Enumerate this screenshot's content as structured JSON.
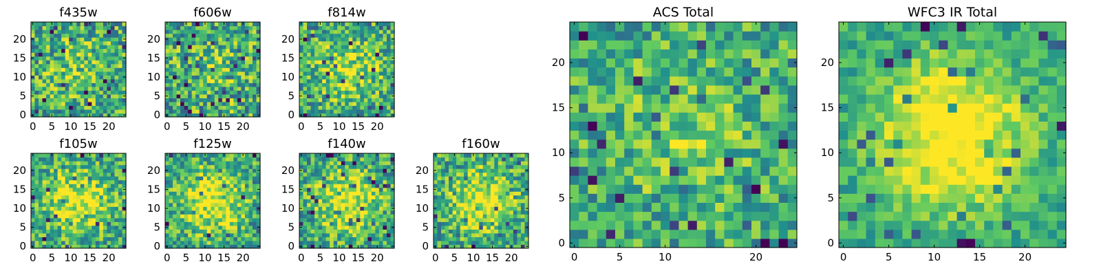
{
  "figure": {
    "colormap": "viridis",
    "cmap_stops": [
      "#440154",
      "#3b528b",
      "#21918c",
      "#5ec962",
      "#fde725"
    ],
    "grid": false
  },
  "chart_data": [
    {
      "type": "heatmap",
      "title": "f435w",
      "size": 25,
      "xlim": [
        0,
        24
      ],
      "ylim": [
        0,
        24
      ],
      "xticks": [
        0,
        5,
        10,
        15,
        20
      ],
      "yticks": [
        0,
        5,
        10,
        15,
        20
      ],
      "contrast": 0.32,
      "blob": 0.15,
      "seed": 11
    },
    {
      "type": "heatmap",
      "title": "f606w",
      "size": 25,
      "xlim": [
        0,
        24
      ],
      "ylim": [
        0,
        24
      ],
      "xticks": [
        0,
        5,
        10,
        15,
        20
      ],
      "yticks": [
        0,
        5,
        10,
        15,
        20
      ],
      "contrast": 0.34,
      "blob": 0.1,
      "seed": 23
    },
    {
      "type": "heatmap",
      "title": "f814w",
      "size": 25,
      "xlim": [
        0,
        24
      ],
      "ylim": [
        0,
        24
      ],
      "xticks": [
        0,
        5,
        10,
        15,
        20
      ],
      "yticks": [
        0,
        5,
        10,
        15,
        20
      ],
      "contrast": 0.3,
      "blob": 0.3,
      "seed": 37
    },
    {
      "type": "heatmap",
      "title": "f105w",
      "size": 25,
      "xlim": [
        0,
        24
      ],
      "ylim": [
        0,
        24
      ],
      "xticks": [
        0,
        5,
        10,
        15,
        20
      ],
      "yticks": [
        0,
        5,
        10,
        15,
        20
      ],
      "contrast": 0.28,
      "blob": 0.4,
      "seed": 41
    },
    {
      "type": "heatmap",
      "title": "f125w",
      "size": 25,
      "xlim": [
        0,
        24
      ],
      "ylim": [
        0,
        24
      ],
      "xticks": [
        0,
        5,
        10,
        15,
        20
      ],
      "yticks": [
        0,
        5,
        10,
        15,
        20
      ],
      "contrast": 0.28,
      "blob": 0.45,
      "seed": 53
    },
    {
      "type": "heatmap",
      "title": "f140w",
      "size": 25,
      "xlim": [
        0,
        24
      ],
      "ylim": [
        0,
        24
      ],
      "xticks": [
        0,
        5,
        10,
        15,
        20
      ],
      "yticks": [
        0,
        5,
        10,
        15,
        20
      ],
      "contrast": 0.28,
      "blob": 0.42,
      "seed": 67
    },
    {
      "type": "heatmap",
      "title": "f160w",
      "size": 25,
      "xlim": [
        0,
        24
      ],
      "ylim": [
        0,
        24
      ],
      "xticks": [
        0,
        5,
        10,
        15,
        20
      ],
      "yticks": [
        0,
        5,
        10,
        15,
        20
      ],
      "contrast": 0.28,
      "blob": 0.4,
      "seed": 79
    },
    {
      "type": "heatmap",
      "title": "ACS Total",
      "size": 25,
      "xlim": [
        0,
        24
      ],
      "ylim": [
        0,
        24
      ],
      "xticks": [
        0,
        5,
        10,
        20
      ],
      "yticks": [
        0,
        5,
        10,
        15,
        20
      ],
      "contrast": 0.26,
      "blob": 0.15,
      "seed": 83
    },
    {
      "type": "heatmap",
      "title": "WFC3 IR Total",
      "size": 25,
      "xlim": [
        0,
        24
      ],
      "ylim": [
        0,
        24
      ],
      "xticks": [
        0,
        5,
        10,
        15,
        20
      ],
      "yticks": [
        0,
        5,
        10,
        15,
        20
      ],
      "contrast": 0.16,
      "blob": 0.55,
      "seed": 97
    }
  ]
}
